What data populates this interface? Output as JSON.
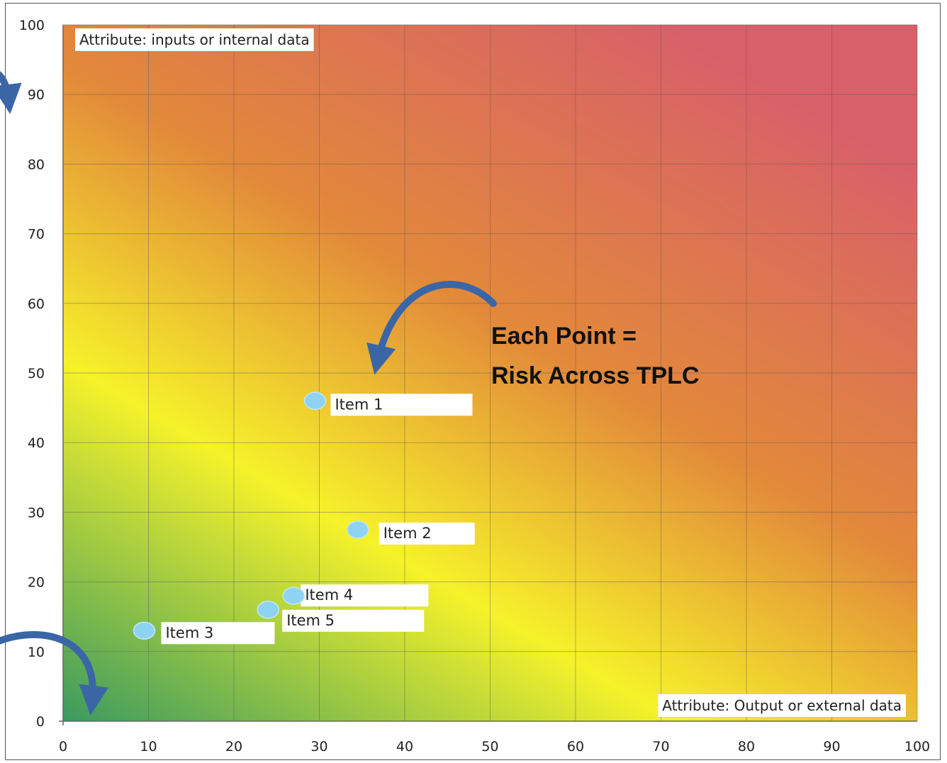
{
  "chart_data": {
    "type": "scatter",
    "title": "",
    "xlabel": "",
    "ylabel": "",
    "xlim": [
      0,
      100
    ],
    "ylim": [
      0,
      100
    ],
    "xticks": [
      0,
      10,
      20,
      30,
      40,
      50,
      60,
      70,
      80,
      90,
      100
    ],
    "yticks": [
      0,
      10,
      20,
      30,
      40,
      50,
      60,
      70,
      80,
      90,
      100
    ],
    "grid": true,
    "background": "gradient heat map: green (low x, low y) through yellow to orange and red (high x, high y)",
    "colors": {
      "green": "#3a9a60",
      "yellow": "#f6f22a",
      "orange": "#e2893a",
      "red": "#d8606a",
      "point": "#8fd3f4",
      "arrow": "#3b66a6"
    },
    "points": [
      {
        "label": "Item 1",
        "x": 29.5,
        "y": 46
      },
      {
        "label": "Item 2",
        "x": 34.5,
        "y": 27.5
      },
      {
        "label": "Item 3",
        "x": 9.5,
        "y": 13
      },
      {
        "label": "Item 4",
        "x": 27,
        "y": 18
      },
      {
        "label": "Item 5",
        "x": 24,
        "y": 16
      }
    ],
    "annotations": {
      "top_left": "Attribute: inputs or internal data",
      "bottom_right": "Attribute: Output or external data",
      "callout_line1": "Each Point =",
      "callout_line2": "Risk Across TPLC"
    }
  }
}
